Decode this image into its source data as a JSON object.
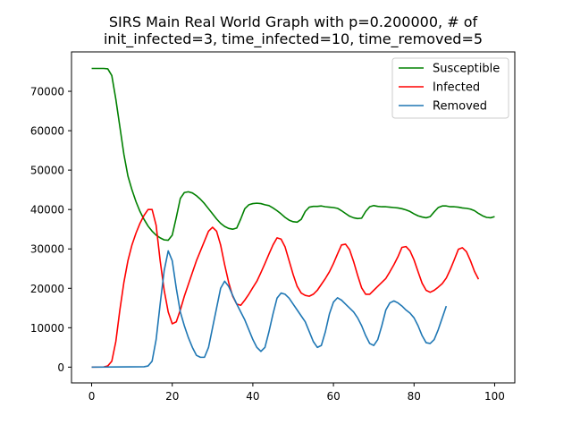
{
  "chart_data": {
    "type": "line",
    "title": "SIRS Main Real World Graph with p=0.200000, # of",
    "title_line2": "init_infected=3, time_infected=10, time_removed=5",
    "xlabel": "",
    "ylabel": "",
    "xlim": [
      -5,
      105
    ],
    "ylim": [
      -4000,
      80000
    ],
    "x_ticks": [
      0,
      20,
      40,
      60,
      80,
      100
    ],
    "y_ticks": [
      0,
      10000,
      20000,
      30000,
      40000,
      50000,
      60000,
      70000
    ],
    "grid": false,
    "legend_position": "top-right",
    "series": [
      {
        "name": "Susceptible",
        "color": "#008000",
        "points": [
          [
            0,
            75800
          ],
          [
            3,
            75800
          ],
          [
            4,
            75700
          ],
          [
            5,
            74000
          ],
          [
            6,
            68000
          ],
          [
            7,
            61000
          ],
          [
            8,
            54000
          ],
          [
            9,
            48500
          ],
          [
            10,
            45000
          ],
          [
            11,
            42000
          ],
          [
            12,
            39500
          ],
          [
            13,
            37500
          ],
          [
            14,
            35800
          ],
          [
            15,
            34500
          ],
          [
            16,
            33500
          ],
          [
            17,
            32800
          ],
          [
            18,
            32300
          ],
          [
            19,
            32200
          ],
          [
            20,
            33500
          ],
          [
            21,
            38000
          ],
          [
            22,
            42800
          ],
          [
            23,
            44300
          ],
          [
            24,
            44500
          ],
          [
            25,
            44200
          ],
          [
            26,
            43500
          ],
          [
            27,
            42600
          ],
          [
            28,
            41500
          ],
          [
            29,
            40200
          ],
          [
            30,
            38900
          ],
          [
            31,
            37600
          ],
          [
            32,
            36500
          ],
          [
            33,
            35700
          ],
          [
            34,
            35200
          ],
          [
            35,
            35000
          ],
          [
            36,
            35300
          ],
          [
            37,
            37600
          ],
          [
            38,
            40200
          ],
          [
            39,
            41200
          ],
          [
            40,
            41500
          ],
          [
            41,
            41600
          ],
          [
            42,
            41500
          ],
          [
            43,
            41200
          ],
          [
            44,
            41000
          ],
          [
            45,
            40400
          ],
          [
            46,
            39700
          ],
          [
            47,
            38900
          ],
          [
            48,
            38000
          ],
          [
            49,
            37300
          ],
          [
            50,
            36900
          ],
          [
            51,
            36800
          ],
          [
            52,
            37500
          ],
          [
            53,
            39500
          ],
          [
            54,
            40600
          ],
          [
            55,
            40800
          ],
          [
            56,
            40800
          ],
          [
            57,
            40900
          ],
          [
            58,
            40700
          ],
          [
            59,
            40600
          ],
          [
            60,
            40500
          ],
          [
            61,
            40300
          ],
          [
            62,
            39700
          ],
          [
            63,
            39000
          ],
          [
            64,
            38300
          ],
          [
            65,
            37900
          ],
          [
            66,
            37700
          ],
          [
            67,
            37800
          ],
          [
            68,
            39500
          ],
          [
            69,
            40700
          ],
          [
            70,
            41000
          ],
          [
            71,
            40800
          ],
          [
            72,
            40700
          ],
          [
            73,
            40700
          ],
          [
            74,
            40600
          ],
          [
            75,
            40500
          ],
          [
            76,
            40400
          ],
          [
            77,
            40200
          ],
          [
            78,
            39900
          ],
          [
            79,
            39500
          ],
          [
            80,
            38900
          ],
          [
            81,
            38400
          ],
          [
            82,
            38100
          ],
          [
            83,
            37900
          ],
          [
            84,
            38200
          ],
          [
            85,
            39400
          ],
          [
            86,
            40500
          ],
          [
            87,
            40900
          ],
          [
            88,
            40900
          ],
          [
            89,
            40700
          ],
          [
            90,
            40700
          ],
          [
            91,
            40600
          ],
          [
            92,
            40400
          ],
          [
            93,
            40300
          ],
          [
            94,
            40100
          ],
          [
            95,
            39700
          ],
          [
            96,
            39000
          ],
          [
            97,
            38400
          ],
          [
            98,
            38000
          ],
          [
            99,
            37900
          ],
          [
            100,
            38200
          ]
        ]
      },
      {
        "name": "Infected",
        "color": "#ff0000",
        "points": [
          [
            0,
            0
          ],
          [
            3,
            50
          ],
          [
            4,
            300
          ],
          [
            5,
            1500
          ],
          [
            6,
            6500
          ],
          [
            7,
            14500
          ],
          [
            8,
            21500
          ],
          [
            9,
            27000
          ],
          [
            10,
            31000
          ],
          [
            11,
            34000
          ],
          [
            12,
            36500
          ],
          [
            13,
            38500
          ],
          [
            14,
            40000
          ],
          [
            15,
            40000
          ],
          [
            16,
            36000
          ],
          [
            17,
            27000
          ],
          [
            18,
            19500
          ],
          [
            19,
            14000
          ],
          [
            20,
            11000
          ],
          [
            21,
            11500
          ],
          [
            22,
            14500
          ],
          [
            23,
            18000
          ],
          [
            24,
            21000
          ],
          [
            25,
            24000
          ],
          [
            26,
            27000
          ],
          [
            27,
            29500
          ],
          [
            28,
            32000
          ],
          [
            29,
            34500
          ],
          [
            30,
            35500
          ],
          [
            31,
            34500
          ],
          [
            32,
            31000
          ],
          [
            33,
            26000
          ],
          [
            34,
            21500
          ],
          [
            35,
            18000
          ],
          [
            36,
            16000
          ],
          [
            37,
            15700
          ],
          [
            38,
            17000
          ],
          [
            39,
            18500
          ],
          [
            40,
            20200
          ],
          [
            41,
            21800
          ],
          [
            42,
            24000
          ],
          [
            43,
            26300
          ],
          [
            44,
            28700
          ],
          [
            45,
            31000
          ],
          [
            46,
            32800
          ],
          [
            47,
            32500
          ],
          [
            48,
            30500
          ],
          [
            49,
            27000
          ],
          [
            50,
            23500
          ],
          [
            51,
            20500
          ],
          [
            52,
            18800
          ],
          [
            53,
            18200
          ],
          [
            54,
            18000
          ],
          [
            55,
            18500
          ],
          [
            56,
            19500
          ],
          [
            57,
            21000
          ],
          [
            58,
            22500
          ],
          [
            59,
            24200
          ],
          [
            60,
            26300
          ],
          [
            61,
            28700
          ],
          [
            62,
            31000
          ],
          [
            63,
            31200
          ],
          [
            64,
            29800
          ],
          [
            65,
            26800
          ],
          [
            66,
            23300
          ],
          [
            67,
            20100
          ],
          [
            68,
            18500
          ],
          [
            69,
            18500
          ],
          [
            70,
            19500
          ],
          [
            71,
            20500
          ],
          [
            72,
            21500
          ],
          [
            73,
            22500
          ],
          [
            74,
            24200
          ],
          [
            75,
            26000
          ],
          [
            76,
            28000
          ],
          [
            77,
            30400
          ],
          [
            78,
            30600
          ],
          [
            79,
            29500
          ],
          [
            80,
            27200
          ],
          [
            81,
            24200
          ],
          [
            82,
            21300
          ],
          [
            83,
            19500
          ],
          [
            84,
            19000
          ],
          [
            85,
            19500
          ],
          [
            86,
            20300
          ],
          [
            87,
            21200
          ],
          [
            88,
            22600
          ],
          [
            89,
            24800
          ],
          [
            90,
            27300
          ],
          [
            91,
            29900
          ],
          [
            92,
            30300
          ],
          [
            93,
            29300
          ],
          [
            94,
            27000
          ],
          [
            95,
            24300
          ],
          [
            96,
            22300
          ]
        ]
      },
      {
        "name": "Removed",
        "color": "#1f77b4",
        "points": [
          [
            0,
            0
          ],
          [
            13,
            100
          ],
          [
            14,
            300
          ],
          [
            15,
            1500
          ],
          [
            16,
            7000
          ],
          [
            17,
            16000
          ],
          [
            18,
            24500
          ],
          [
            19,
            29500
          ],
          [
            20,
            27000
          ],
          [
            21,
            20000
          ],
          [
            22,
            14000
          ],
          [
            23,
            10500
          ],
          [
            24,
            7500
          ],
          [
            25,
            5000
          ],
          [
            26,
            3000
          ],
          [
            27,
            2500
          ],
          [
            28,
            2500
          ],
          [
            29,
            5000
          ],
          [
            30,
            10000
          ],
          [
            31,
            15000
          ],
          [
            32,
            20000
          ],
          [
            33,
            21800
          ],
          [
            34,
            20500
          ],
          [
            35,
            18200
          ],
          [
            36,
            16000
          ],
          [
            37,
            14000
          ],
          [
            38,
            12000
          ],
          [
            39,
            9500
          ],
          [
            40,
            7000
          ],
          [
            41,
            5000
          ],
          [
            42,
            4000
          ],
          [
            43,
            5000
          ],
          [
            44,
            9000
          ],
          [
            45,
            13500
          ],
          [
            46,
            17500
          ],
          [
            47,
            18800
          ],
          [
            48,
            18500
          ],
          [
            49,
            17500
          ],
          [
            50,
            16000
          ],
          [
            51,
            14500
          ],
          [
            52,
            13000
          ],
          [
            53,
            11500
          ],
          [
            54,
            9000
          ],
          [
            55,
            6500
          ],
          [
            56,
            5000
          ],
          [
            57,
            5500
          ],
          [
            58,
            9000
          ],
          [
            59,
            13500
          ],
          [
            60,
            16500
          ],
          [
            61,
            17600
          ],
          [
            62,
            17000
          ],
          [
            63,
            16000
          ],
          [
            64,
            15000
          ],
          [
            65,
            14000
          ],
          [
            66,
            12500
          ],
          [
            67,
            10500
          ],
          [
            68,
            8000
          ],
          [
            69,
            6000
          ],
          [
            70,
            5500
          ],
          [
            71,
            7000
          ],
          [
            72,
            10500
          ],
          [
            73,
            14500
          ],
          [
            74,
            16300
          ],
          [
            75,
            16800
          ],
          [
            76,
            16300
          ],
          [
            77,
            15500
          ],
          [
            78,
            14500
          ],
          [
            79,
            13700
          ],
          [
            80,
            12500
          ],
          [
            81,
            10500
          ],
          [
            82,
            8000
          ],
          [
            83,
            6200
          ],
          [
            84,
            6000
          ],
          [
            85,
            7000
          ],
          [
            86,
            9500
          ],
          [
            87,
            12500
          ],
          [
            88,
            15500
          ]
        ]
      }
    ]
  }
}
